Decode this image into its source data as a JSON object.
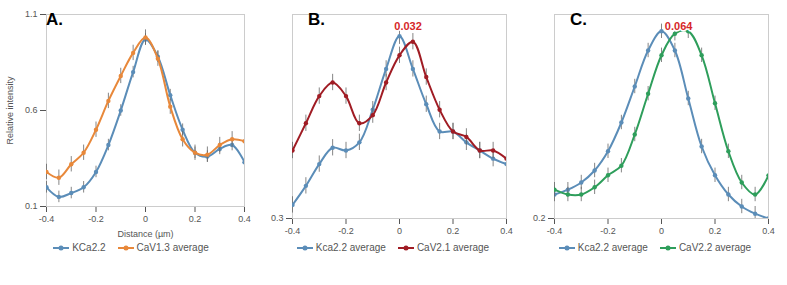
{
  "chart_data": [
    {
      "type": "line",
      "title": "A.",
      "xlabel": "Distance (µm)",
      "ylabel": "Relative intensity",
      "x": [
        -0.4,
        -0.35,
        -0.3,
        -0.25,
        -0.2,
        -0.15,
        -0.1,
        -0.05,
        0,
        0.05,
        0.1,
        0.15,
        0.2,
        0.25,
        0.3,
        0.35,
        0.4
      ],
      "xlim": [
        -0.4,
        0.4
      ],
      "xticks": [
        -0.4,
        -0.2,
        0,
        0.2,
        0.4
      ],
      "ylim": [
        0.1,
        1.1
      ],
      "yticks": [
        0.1,
        0.6,
        1.1
      ],
      "marker": "circle",
      "legend": "bottom",
      "series": [
        {
          "name": "KCa2.2",
          "color": "#5b8db8",
          "values": [
            0.2,
            0.15,
            0.17,
            0.2,
            0.28,
            0.42,
            0.6,
            0.8,
            0.97,
            0.88,
            0.68,
            0.5,
            0.38,
            0.36,
            0.4,
            0.42,
            0.33
          ],
          "errors": [
            0.03,
            0.03,
            0.03,
            0.03,
            0.03,
            0.03,
            0.03,
            0.03,
            0.03,
            0.03,
            0.03,
            0.03,
            0.03,
            0.03,
            0.03,
            0.03,
            0.03
          ]
        },
        {
          "name": "CaV1.3 average",
          "color": "#e8883a",
          "values": [
            0.28,
            0.25,
            0.32,
            0.38,
            0.5,
            0.65,
            0.78,
            0.9,
            0.98,
            0.87,
            0.62,
            0.45,
            0.38,
            0.37,
            0.42,
            0.45,
            0.44
          ],
          "errors": [
            0.04,
            0.04,
            0.04,
            0.04,
            0.04,
            0.04,
            0.04,
            0.04,
            0.04,
            0.04,
            0.04,
            0.04,
            0.04,
            0.04,
            0.04,
            0.04,
            0.04
          ]
        }
      ]
    },
    {
      "type": "line",
      "title": "B.",
      "x": [
        -0.4,
        -0.35,
        -0.3,
        -0.25,
        -0.2,
        -0.15,
        -0.1,
        -0.05,
        0,
        0.05,
        0.1,
        0.15,
        0.2,
        0.25,
        0.3,
        0.35,
        0.4
      ],
      "xlim": [
        -0.4,
        0.4
      ],
      "xticks": [
        -0.4,
        -0.2,
        0,
        0.2,
        0.4
      ],
      "ylim": [
        0.3,
        1.05
      ],
      "yticks": [
        0.3
      ],
      "marker": "circle",
      "legend": "bottom",
      "annotations": [
        {
          "text": "0.032",
          "x": 0.032
        }
      ],
      "series": [
        {
          "name": "Kca2.2 average",
          "color": "#5b8db8",
          "values": [
            0.35,
            0.42,
            0.5,
            0.56,
            0.55,
            0.58,
            0.7,
            0.85,
            0.97,
            0.85,
            0.72,
            0.62,
            0.62,
            0.58,
            0.55,
            0.52,
            0.5
          ],
          "errors": [
            0.03,
            0.03,
            0.03,
            0.03,
            0.03,
            0.03,
            0.03,
            0.03,
            0.03,
            0.03,
            0.03,
            0.03,
            0.03,
            0.03,
            0.03,
            0.03,
            0.03
          ]
        },
        {
          "name": "CaV2.1 average",
          "color": "#a01c24",
          "values": [
            0.55,
            0.65,
            0.75,
            0.8,
            0.75,
            0.65,
            0.68,
            0.8,
            0.9,
            0.95,
            0.82,
            0.7,
            0.62,
            0.6,
            0.55,
            0.55,
            0.52
          ],
          "errors": [
            0.03,
            0.03,
            0.03,
            0.03,
            0.03,
            0.03,
            0.03,
            0.03,
            0.03,
            0.03,
            0.03,
            0.03,
            0.03,
            0.03,
            0.03,
            0.03,
            0.03
          ]
        }
      ]
    },
    {
      "type": "line",
      "title": "C.",
      "x": [
        -0.4,
        -0.35,
        -0.3,
        -0.25,
        -0.2,
        -0.15,
        -0.1,
        -0.05,
        0,
        0.05,
        0.1,
        0.15,
        0.2,
        0.25,
        0.3,
        0.35,
        0.4
      ],
      "xlim": [
        -0.4,
        0.4
      ],
      "xticks": [
        -0.4,
        -0.2,
        0,
        0.2,
        0.4
      ],
      "ylim": [
        0.2,
        1.05
      ],
      "yticks": [
        0.2
      ],
      "marker": "circle",
      "legend": "bottom",
      "annotations": [
        {
          "text": "0.064",
          "x": 0.064
        }
      ],
      "series": [
        {
          "name": "Kca2.2 average",
          "color": "#5b8db8",
          "values": [
            0.3,
            0.32,
            0.35,
            0.4,
            0.48,
            0.6,
            0.75,
            0.9,
            0.98,
            0.9,
            0.7,
            0.5,
            0.38,
            0.3,
            0.25,
            0.22,
            0.2
          ],
          "errors": [
            0.03,
            0.03,
            0.03,
            0.03,
            0.03,
            0.03,
            0.03,
            0.03,
            0.03,
            0.03,
            0.03,
            0.03,
            0.03,
            0.03,
            0.03,
            0.03,
            0.03
          ]
        },
        {
          "name": "CaV2.2 average",
          "color": "#2e9e5b",
          "values": [
            0.32,
            0.3,
            0.3,
            0.33,
            0.38,
            0.42,
            0.55,
            0.72,
            0.88,
            0.97,
            0.98,
            0.88,
            0.68,
            0.48,
            0.35,
            0.3,
            0.38
          ],
          "errors": [
            0.03,
            0.03,
            0.03,
            0.03,
            0.03,
            0.03,
            0.03,
            0.03,
            0.03,
            0.03,
            0.03,
            0.03,
            0.03,
            0.03,
            0.03,
            0.03,
            0.03
          ]
        }
      ]
    }
  ]
}
